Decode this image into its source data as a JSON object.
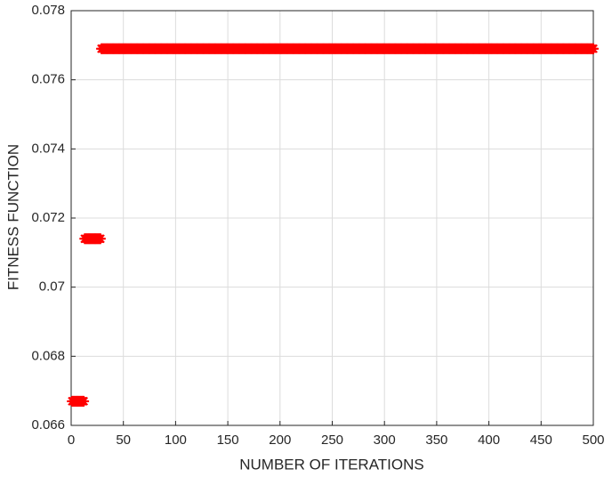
{
  "chart_data": {
    "type": "scatter",
    "xlabel": "NUMBER OF ITERATIONS",
    "ylabel": "FITNESS FUNCTION",
    "color": "#ff0000",
    "marker": "asterisk",
    "grid": true,
    "xlim": [
      0,
      500
    ],
    "xticks": [
      0,
      50,
      100,
      150,
      200,
      250,
      300,
      350,
      400,
      450,
      500
    ],
    "ylim": [
      0.066,
      0.078
    ],
    "yticks": [
      0.066,
      0.068,
      0.07,
      0.072,
      0.074,
      0.076,
      0.078
    ],
    "x": [
      1,
      2,
      3,
      4,
      5,
      6,
      7,
      8,
      9,
      10,
      11,
      12,
      13,
      14,
      15,
      16,
      17,
      18,
      19,
      20,
      21,
      22,
      23,
      24,
      25,
      26,
      27,
      28,
      29,
      30,
      31,
      32,
      33,
      34,
      35,
      36,
      37,
      38,
      39,
      40,
      41,
      42,
      43,
      44,
      45,
      46,
      47,
      48,
      49,
      50,
      51,
      52,
      53,
      54,
      55,
      56,
      57,
      58,
      59,
      60,
      61,
      62,
      63,
      64,
      65,
      66,
      67,
      68,
      69,
      70,
      71,
      72,
      73,
      74,
      75,
      76,
      77,
      78,
      79,
      80,
      81,
      82,
      83,
      84,
      85,
      86,
      87,
      88,
      89,
      90,
      91,
      92,
      93,
      94,
      95,
      96,
      97,
      98,
      99,
      100,
      101,
      102,
      103,
      104,
      105,
      106,
      107,
      108,
      109,
      110,
      111,
      112,
      113,
      114,
      115,
      116,
      117,
      118,
      119,
      120,
      121,
      122,
      123,
      124,
      125,
      126,
      127,
      128,
      129,
      130,
      131,
      132,
      133,
      134,
      135,
      136,
      137,
      138,
      139,
      140,
      141,
      142,
      143,
      144,
      145,
      146,
      147,
      148,
      149,
      150,
      151,
      152,
      153,
      154,
      155,
      156,
      157,
      158,
      159,
      160,
      161,
      162,
      163,
      164,
      165,
      166,
      167,
      168,
      169,
      170,
      171,
      172,
      173,
      174,
      175,
      176,
      177,
      178,
      179,
      180,
      181,
      182,
      183,
      184,
      185,
      186,
      187,
      188,
      189,
      190,
      191,
      192,
      193,
      194,
      195,
      196,
      197,
      198,
      199,
      200,
      201,
      202,
      203,
      204,
      205,
      206,
      207,
      208,
      209,
      210,
      211,
      212,
      213,
      214,
      215,
      216,
      217,
      218,
      219,
      220,
      221,
      222,
      223,
      224,
      225,
      226,
      227,
      228,
      229,
      230,
      231,
      232,
      233,
      234,
      235,
      236,
      237,
      238,
      239,
      240,
      241,
      242,
      243,
      244,
      245,
      246,
      247,
      248,
      249,
      250,
      251,
      252,
      253,
      254,
      255,
      256,
      257,
      258,
      259,
      260,
      261,
      262,
      263,
      264,
      265,
      266,
      267,
      268,
      269,
      270,
      271,
      272,
      273,
      274,
      275,
      276,
      277,
      278,
      279,
      280,
      281,
      282,
      283,
      284,
      285,
      286,
      287,
      288,
      289,
      290,
      291,
      292,
      293,
      294,
      295,
      296,
      297,
      298,
      299,
      300,
      301,
      302,
      303,
      304,
      305,
      306,
      307,
      308,
      309,
      310,
      311,
      312,
      313,
      314,
      315,
      316,
      317,
      318,
      319,
      320,
      321,
      322,
      323,
      324,
      325,
      326,
      327,
      328,
      329,
      330,
      331,
      332,
      333,
      334,
      335,
      336,
      337,
      338,
      339,
      340,
      341,
      342,
      343,
      344,
      345,
      346,
      347,
      348,
      349,
      350,
      351,
      352,
      353,
      354,
      355,
      356,
      357,
      358,
      359,
      360,
      361,
      362,
      363,
      364,
      365,
      366,
      367,
      368,
      369,
      370,
      371,
      372,
      373,
      374,
      375,
      376,
      377,
      378,
      379,
      380,
      381,
      382,
      383,
      384,
      385,
      386,
      387,
      388,
      389,
      390,
      391,
      392,
      393,
      394,
      395,
      396,
      397,
      398,
      399,
      400,
      401,
      402,
      403,
      404,
      405,
      406,
      407,
      408,
      409,
      410,
      411,
      412,
      413,
      414,
      415,
      416,
      417,
      418,
      419,
      420,
      421,
      422,
      423,
      424,
      425,
      426,
      427,
      428,
      429,
      430,
      431,
      432,
      433,
      434,
      435,
      436,
      437,
      438,
      439,
      440,
      441,
      442,
      443,
      444,
      445,
      446,
      447,
      448,
      449,
      450,
      451,
      452,
      453,
      454,
      455,
      456,
      457,
      458,
      459,
      460,
      461,
      462,
      463,
      464,
      465,
      466,
      467,
      468,
      469,
      470,
      471,
      472,
      473,
      474,
      475,
      476,
      477,
      478,
      479,
      480,
      481,
      482,
      483,
      484,
      485,
      486,
      487,
      488,
      489,
      490,
      491,
      492,
      493,
      494,
      495,
      496,
      497,
      498,
      499,
      500
    ],
    "values": [
      0.0667,
      0.0667,
      0.0667,
      0.0667,
      0.0667,
      0.0667,
      0.0667,
      0.0667,
      0.0667,
      0.0667,
      0.0667,
      0.0667,
      0.0714,
      0.0714,
      0.0714,
      0.0714,
      0.0714,
      0.0714,
      0.0714,
      0.0714,
      0.0714,
      0.0714,
      0.0714,
      0.0714,
      0.0714,
      0.0714,
      0.0714,
      0.0714,
      0.0769,
      0.0769,
      0.0769,
      0.0769,
      0.0769,
      0.0769,
      0.0769,
      0.0769,
      0.0769,
      0.0769,
      0.0769,
      0.0769,
      0.0769,
      0.0769,
      0.0769,
      0.0769,
      0.0769,
      0.0769,
      0.0769,
      0.0769,
      0.0769,
      0.0769,
      0.0769,
      0.0769,
      0.0769,
      0.0769,
      0.0769,
      0.0769,
      0.0769,
      0.0769,
      0.0769,
      0.0769,
      0.0769,
      0.0769,
      0.0769,
      0.0769,
      0.0769,
      0.0769,
      0.0769,
      0.0769,
      0.0769,
      0.0769,
      0.0769,
      0.0769,
      0.0769,
      0.0769,
      0.0769,
      0.0769,
      0.0769,
      0.0769,
      0.0769,
      0.0769,
      0.0769,
      0.0769,
      0.0769,
      0.0769,
      0.0769,
      0.0769,
      0.0769,
      0.0769,
      0.0769,
      0.0769,
      0.0769,
      0.0769,
      0.0769,
      0.0769,
      0.0769,
      0.0769,
      0.0769,
      0.0769,
      0.0769,
      0.0769,
      0.0769,
      0.0769,
      0.0769,
      0.0769,
      0.0769,
      0.0769,
      0.0769,
      0.0769,
      0.0769,
      0.0769,
      0.0769,
      0.0769,
      0.0769,
      0.0769,
      0.0769,
      0.0769,
      0.0769,
      0.0769,
      0.0769,
      0.0769,
      0.0769,
      0.0769,
      0.0769,
      0.0769,
      0.0769,
      0.0769,
      0.0769,
      0.0769,
      0.0769,
      0.0769,
      0.0769,
      0.0769,
      0.0769,
      0.0769,
      0.0769,
      0.0769,
      0.0769,
      0.0769,
      0.0769,
      0.0769,
      0.0769,
      0.0769,
      0.0769,
      0.0769,
      0.0769,
      0.0769,
      0.0769,
      0.0769,
      0.0769,
      0.0769,
      0.0769,
      0.0769,
      0.0769,
      0.0769,
      0.0769,
      0.0769,
      0.0769,
      0.0769,
      0.0769,
      0.0769,
      0.0769,
      0.0769,
      0.0769,
      0.0769,
      0.0769,
      0.0769,
      0.0769,
      0.0769,
      0.0769,
      0.0769,
      0.0769,
      0.0769,
      0.0769,
      0.0769,
      0.0769,
      0.0769,
      0.0769,
      0.0769,
      0.0769,
      0.0769,
      0.0769,
      0.0769,
      0.0769,
      0.0769,
      0.0769,
      0.0769,
      0.0769,
      0.0769,
      0.0769,
      0.0769,
      0.0769,
      0.0769,
      0.0769,
      0.0769,
      0.0769,
      0.0769,
      0.0769,
      0.0769,
      0.0769,
      0.0769,
      0.0769,
      0.0769,
      0.0769,
      0.0769,
      0.0769,
      0.0769,
      0.0769,
      0.0769,
      0.0769,
      0.0769,
      0.0769,
      0.0769,
      0.0769,
      0.0769,
      0.0769,
      0.0769,
      0.0769,
      0.0769,
      0.0769,
      0.0769,
      0.0769,
      0.0769,
      0.0769,
      0.0769,
      0.0769,
      0.0769,
      0.0769,
      0.0769,
      0.0769,
      0.0769,
      0.0769,
      0.0769,
      0.0769,
      0.0769,
      0.0769,
      0.0769,
      0.0769,
      0.0769,
      0.0769,
      0.0769,
      0.0769,
      0.0769,
      0.0769,
      0.0769,
      0.0769,
      0.0769,
      0.0769,
      0.0769,
      0.0769,
      0.0769,
      0.0769,
      0.0769,
      0.0769,
      0.0769,
      0.0769,
      0.0769,
      0.0769,
      0.0769,
      0.0769,
      0.0769,
      0.0769,
      0.0769,
      0.0769,
      0.0769,
      0.0769,
      0.0769,
      0.0769,
      0.0769,
      0.0769,
      0.0769,
      0.0769,
      0.0769,
      0.0769,
      0.0769,
      0.0769,
      0.0769,
      0.0769,
      0.0769,
      0.0769,
      0.0769,
      0.0769,
      0.0769,
      0.0769,
      0.0769,
      0.0769,
      0.0769,
      0.0769,
      0.0769,
      0.0769,
      0.0769,
      0.0769,
      0.0769,
      0.0769,
      0.0769,
      0.0769,
      0.0769,
      0.0769,
      0.0769,
      0.0769,
      0.0769,
      0.0769,
      0.0769,
      0.0769,
      0.0769,
      0.0769,
      0.0769,
      0.0769,
      0.0769,
      0.0769,
      0.0769,
      0.0769,
      0.0769,
      0.0769,
      0.0769,
      0.0769,
      0.0769,
      0.0769,
      0.0769,
      0.0769,
      0.0769,
      0.0769,
      0.0769,
      0.0769,
      0.0769,
      0.0769,
      0.0769,
      0.0769,
      0.0769,
      0.0769,
      0.0769,
      0.0769,
      0.0769,
      0.0769,
      0.0769,
      0.0769,
      0.0769,
      0.0769,
      0.0769,
      0.0769,
      0.0769,
      0.0769,
      0.0769,
      0.0769,
      0.0769,
      0.0769,
      0.0769,
      0.0769,
      0.0769,
      0.0769,
      0.0769,
      0.0769,
      0.0769,
      0.0769,
      0.0769,
      0.0769,
      0.0769,
      0.0769,
      0.0769,
      0.0769,
      0.0769,
      0.0769,
      0.0769,
      0.0769,
      0.0769,
      0.0769,
      0.0769,
      0.0769,
      0.0769,
      0.0769,
      0.0769,
      0.0769,
      0.0769,
      0.0769,
      0.0769,
      0.0769,
      0.0769,
      0.0769,
      0.0769,
      0.0769,
      0.0769,
      0.0769,
      0.0769,
      0.0769,
      0.0769,
      0.0769,
      0.0769,
      0.0769,
      0.0769,
      0.0769,
      0.0769,
      0.0769,
      0.0769,
      0.0769,
      0.0769,
      0.0769,
      0.0769,
      0.0769,
      0.0769,
      0.0769,
      0.0769,
      0.0769,
      0.0769,
      0.0769,
      0.0769,
      0.0769,
      0.0769,
      0.0769,
      0.0769,
      0.0769,
      0.0769,
      0.0769,
      0.0769,
      0.0769,
      0.0769,
      0.0769,
      0.0769,
      0.0769,
      0.0769,
      0.0769,
      0.0769,
      0.0769,
      0.0769,
      0.0769,
      0.0769,
      0.0769,
      0.0769,
      0.0769,
      0.0769,
      0.0769,
      0.0769,
      0.0769,
      0.0769,
      0.0769,
      0.0769,
      0.0769,
      0.0769,
      0.0769,
      0.0769,
      0.0769,
      0.0769,
      0.0769,
      0.0769,
      0.0769,
      0.0769,
      0.0769,
      0.0769,
      0.0769,
      0.0769,
      0.0769,
      0.0769,
      0.0769,
      0.0769,
      0.0769,
      0.0769,
      0.0769,
      0.0769,
      0.0769,
      0.0769,
      0.0769,
      0.0769,
      0.0769,
      0.0769,
      0.0769,
      0.0769,
      0.0769,
      0.0769,
      0.0769,
      0.0769,
      0.0769,
      0.0769,
      0.0769,
      0.0769,
      0.0769,
      0.0769,
      0.0769,
      0.0769,
      0.0769,
      0.0769,
      0.0769,
      0.0769,
      0.0769,
      0.0769,
      0.0769,
      0.0769,
      0.0769,
      0.0769,
      0.0769,
      0.0769,
      0.0769,
      0.0769,
      0.0769,
      0.0769,
      0.0769,
      0.0769,
      0.0769,
      0.0769,
      0.0769,
      0.0769,
      0.0769,
      0.0769
    ]
  }
}
